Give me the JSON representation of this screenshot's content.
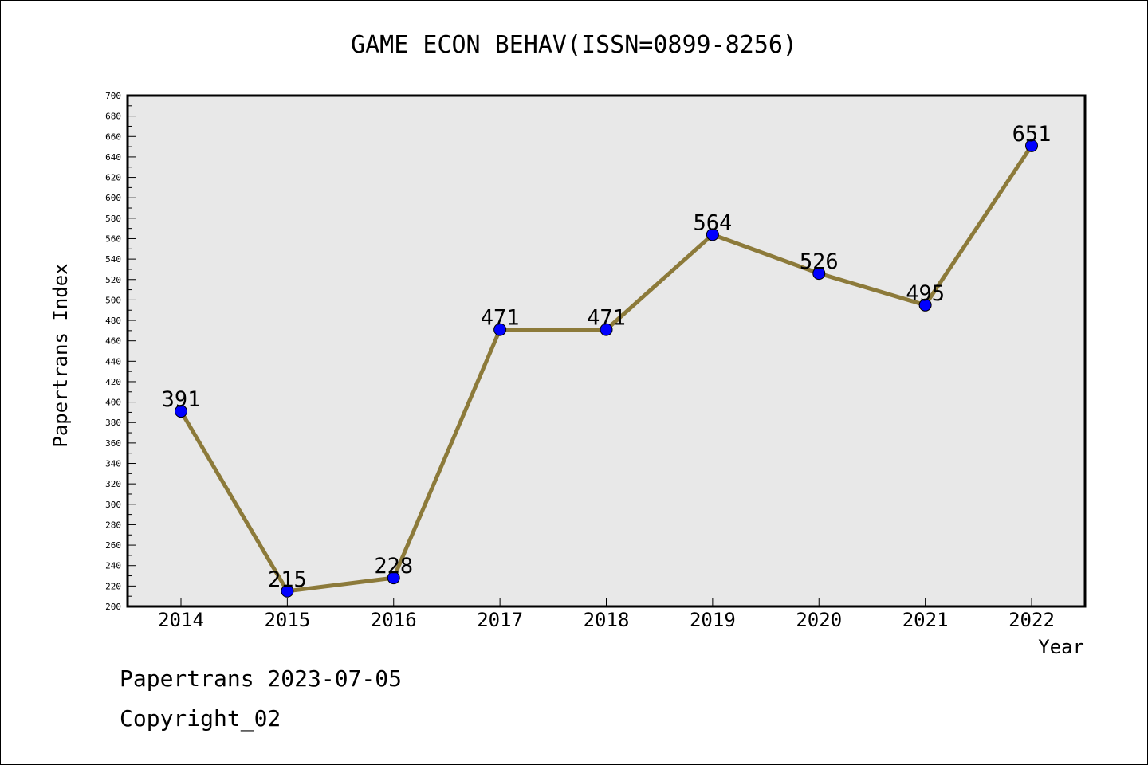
{
  "chart_data": {
    "type": "line",
    "title": "GAME ECON BEHAV(ISSN=0899-8256)",
    "xlabel": "Year",
    "ylabel": "Papertrans Index",
    "categories": [
      "2014",
      "2015",
      "2016",
      "2017",
      "2018",
      "2019",
      "2020",
      "2021",
      "2022"
    ],
    "values": [
      391,
      215,
      228,
      471,
      471,
      564,
      526,
      495,
      651
    ],
    "data_labels": [
      "391",
      "215",
      "228",
      "471",
      "471",
      "564",
      "526",
      "495",
      "651"
    ],
    "ylim": [
      200,
      700
    ],
    "y_ticks": [
      "200",
      "220",
      "240",
      "260",
      "280",
      "300",
      "320",
      "340",
      "360",
      "380",
      "400",
      "420",
      "440",
      "460",
      "480",
      "500",
      "520",
      "540",
      "560",
      "580",
      "600",
      "620",
      "640",
      "660",
      "680",
      "700"
    ],
    "grid": false,
    "colors": {
      "line": "#8c7a3a",
      "marker": "#0000ff",
      "plot_background": "#e8e8e8"
    }
  },
  "footer": {
    "line1": "Papertrans 2023-07-05",
    "line2": "Copyright_02"
  }
}
